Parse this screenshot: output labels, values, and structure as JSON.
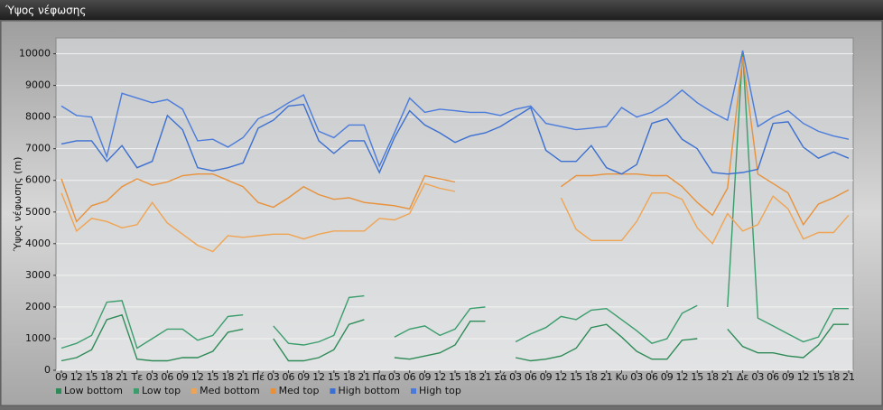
{
  "window": {
    "title": "Ύψος νέφωσης"
  },
  "chart_data": {
    "type": "line",
    "y_label": "Ύψος νέφωσης (m)",
    "categories": [
      "09",
      "12",
      "15",
      "18",
      "21",
      "Τε",
      "03",
      "06",
      "09",
      "12",
      "15",
      "18",
      "21",
      "Πέ",
      "03",
      "06",
      "09",
      "12",
      "15",
      "18",
      "21",
      "Πα",
      "03",
      "06",
      "09",
      "12",
      "15",
      "18",
      "21",
      "Σά",
      "03",
      "06",
      "09",
      "12",
      "15",
      "18",
      "21",
      "Κυ",
      "03",
      "06",
      "09",
      "12",
      "15",
      "18",
      "21",
      "Δε",
      "03",
      "06",
      "09",
      "12",
      "15",
      "18",
      "21"
    ],
    "series": [
      {
        "name": "Low bottom",
        "color": "#2e8b57",
        "values": [
          300,
          400,
          650,
          1600,
          1750,
          350,
          300,
          300,
          400,
          400,
          600,
          1200,
          1300,
          null,
          1000,
          300,
          300,
          400,
          650,
          1450,
          1600,
          null,
          400,
          350,
          450,
          550,
          800,
          1550,
          1550,
          null,
          400,
          300,
          350,
          450,
          700,
          1350,
          1450,
          1050,
          600,
          350,
          350,
          950,
          1000,
          null,
          1300,
          750,
          550,
          550,
          450,
          400,
          800,
          1450,
          1450
        ]
      },
      {
        "name": "Low top",
        "color": "#3a9d6c",
        "values": [
          700,
          850,
          1100,
          2150,
          2200,
          700,
          1000,
          1300,
          1300,
          950,
          1100,
          1700,
          1750,
          null,
          1400,
          850,
          800,
          900,
          1100,
          2300,
          2350,
          null,
          1050,
          1300,
          1400,
          1100,
          1300,
          1950,
          2000,
          null,
          900,
          1150,
          1350,
          1700,
          1600,
          1900,
          1950,
          1600,
          1250,
          850,
          1000,
          1800,
          2050,
          null,
          2000,
          10100,
          1650,
          1400,
          1150,
          900,
          1050,
          1950,
          1950
        ]
      },
      {
        "name": "Med bottom",
        "color": "#f0a451",
        "values": [
          5600,
          4400,
          4800,
          4700,
          4500,
          4600,
          5300,
          4650,
          4300,
          3950,
          3750,
          4250,
          4200,
          4250,
          4300,
          4300,
          4150,
          4300,
          4400,
          4400,
          4400,
          4800,
          4750,
          4950,
          5900,
          5750,
          5650,
          null,
          null,
          null,
          null,
          null,
          null,
          5450,
          4450,
          4100,
          4100,
          4100,
          4700,
          5600,
          5600,
          5400,
          4500,
          4000,
          4950,
          4400,
          4600,
          5500,
          5100,
          4150,
          4350,
          4350,
          4900
        ]
      },
      {
        "name": "Med top",
        "color": "#e8913a",
        "values": [
          6050,
          4700,
          5200,
          5350,
          5800,
          6050,
          5850,
          5950,
          6150,
          6200,
          6200,
          6000,
          5800,
          5300,
          5150,
          5450,
          5800,
          5550,
          5400,
          5450,
          5300,
          5250,
          5200,
          5100,
          6150,
          6050,
          5950,
          null,
          null,
          null,
          null,
          null,
          null,
          5800,
          6150,
          6150,
          6200,
          6200,
          6200,
          6150,
          6150,
          5800,
          5300,
          4900,
          5750,
          9900,
          6200,
          5900,
          5600,
          4600,
          5250,
          5450,
          5700
        ]
      },
      {
        "name": "High bottom",
        "color": "#3b6fd1",
        "values": [
          7150,
          7250,
          7250,
          6600,
          7100,
          6400,
          6600,
          8050,
          7600,
          6400,
          6300,
          6400,
          6550,
          7650,
          7900,
          8350,
          8400,
          7250,
          6850,
          7250,
          7250,
          6250,
          7350,
          8200,
          7750,
          7500,
          7200,
          7400,
          7500,
          7700,
          8000,
          8300,
          6950,
          6600,
          6600,
          7100,
          6400,
          6200,
          6500,
          7800,
          7950,
          7300,
          7000,
          6250,
          6200,
          6250,
          6350,
          7800,
          7850,
          7050,
          6700,
          6900,
          6700
        ]
      },
      {
        "name": "High top",
        "color": "#4a7bdc",
        "values": [
          8350,
          8050,
          8000,
          6750,
          8750,
          8600,
          8450,
          8550,
          8250,
          7250,
          7300,
          7050,
          7350,
          7950,
          8150,
          8450,
          8700,
          7550,
          7350,
          7750,
          7750,
          6450,
          7500,
          8600,
          8150,
          8250,
          8200,
          8150,
          8150,
          8050,
          8250,
          8350,
          7800,
          7700,
          7600,
          7650,
          7700,
          8300,
          8000,
          8150,
          8450,
          8850,
          8450,
          8150,
          7900,
          10100,
          7700,
          8000,
          8200,
          7800,
          7550,
          7400,
          7300
        ]
      }
    ],
    "ylim": [
      0,
      10500
    ],
    "yticks": [
      0,
      1000,
      2000,
      3000,
      4000,
      5000,
      6000,
      7000,
      8000,
      9000,
      10000
    ],
    "grid": true
  }
}
